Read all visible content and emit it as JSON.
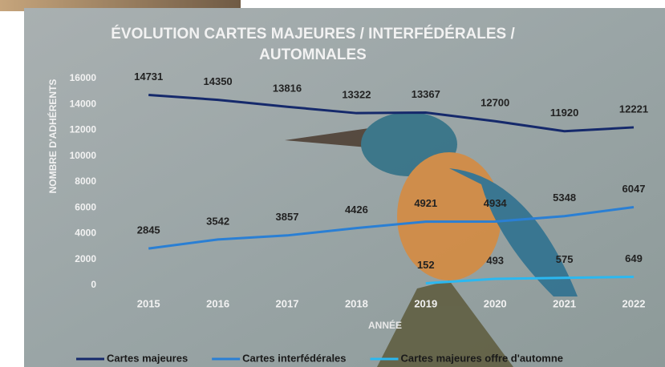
{
  "chart_data": {
    "type": "line",
    "title": "ÉVOLUTION CARTES MAJEURES / INTERFÉDÉRALES / AUTOMNALES",
    "x_label": "ANNÉE",
    "y_label": "NOMBRE D'ADHÉRENTS",
    "categories": [
      "2015",
      "2016",
      "2017",
      "2018",
      "2019",
      "2020",
      "2021",
      "2022"
    ],
    "series": [
      {
        "name": "Cartes majeures",
        "color": "#15296b",
        "values": [
          14731,
          14350,
          13816,
          13322,
          13367,
          12700,
          11920,
          12221
        ]
      },
      {
        "name": "Cartes interfédérales",
        "color": "#2a7fd4",
        "values": [
          2845,
          3542,
          3857,
          4426,
          4921,
          4934,
          5348,
          6047
        ]
      },
      {
        "name": "Cartes majeures offre d'automne",
        "color": "#2bb8f0",
        "values": [
          null,
          null,
          null,
          null,
          152,
          493,
          575,
          649
        ]
      }
    ],
    "ylim": [
      0,
      16000
    ],
    "yticks": [
      0,
      2000,
      4000,
      6000,
      8000,
      10000,
      12000,
      14000,
      16000
    ],
    "grid": false,
    "legend": "bottom"
  }
}
